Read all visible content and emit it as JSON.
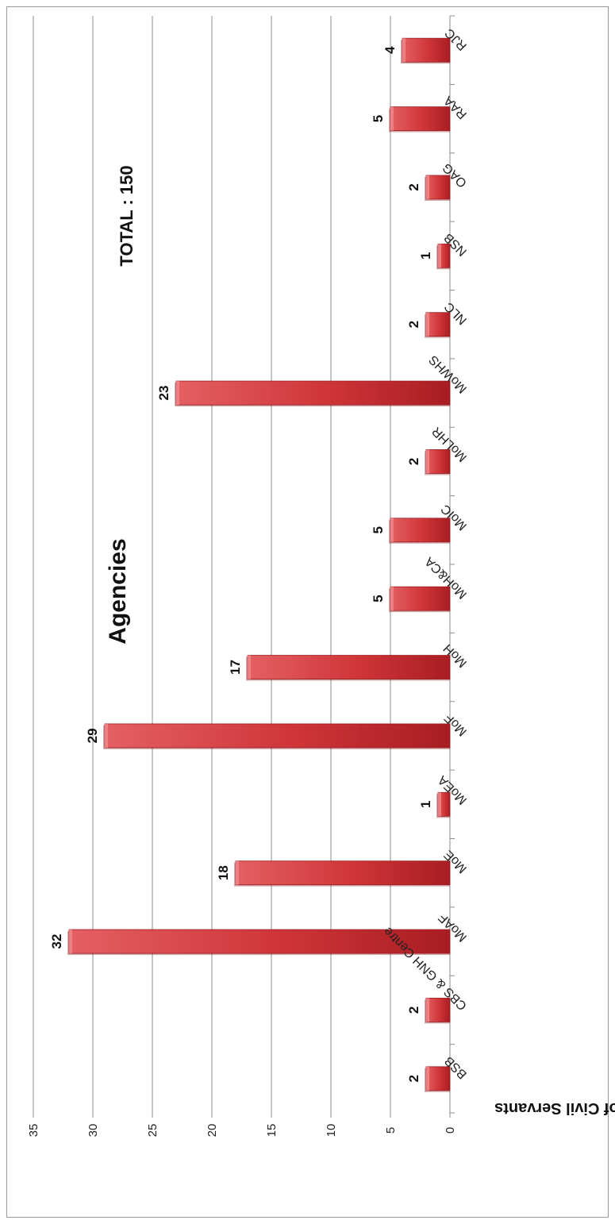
{
  "chart_data": {
    "type": "bar",
    "orientation": "rotated-90-clockwise",
    "categories": [
      "BSB",
      "CBS & GNH Centre",
      "MoAF",
      "MoE",
      "MoEA",
      "MoF",
      "MoH",
      "MoH&CA",
      "MoIC",
      "MoLHR",
      "MoWHS",
      "NLC",
      "NSB",
      "OAG",
      "RAA",
      "RJC"
    ],
    "values": [
      2,
      2,
      32,
      18,
      1,
      29,
      17,
      5,
      5,
      2,
      23,
      2,
      1,
      2,
      5,
      4
    ],
    "xlabel": "Agencies",
    "ylabel": "Number of Civil Servants",
    "ylim": [
      0,
      35
    ],
    "yticks": [
      0,
      5,
      10,
      15,
      20,
      25,
      30,
      35
    ],
    "annotation": "TOTAL : 150",
    "grid": true,
    "legend": "none",
    "colors": {
      "bar": "#c0282d",
      "bar_light": "#e05a5c",
      "grid": "#8c8c8c",
      "axis": "#8c8c8c"
    }
  }
}
